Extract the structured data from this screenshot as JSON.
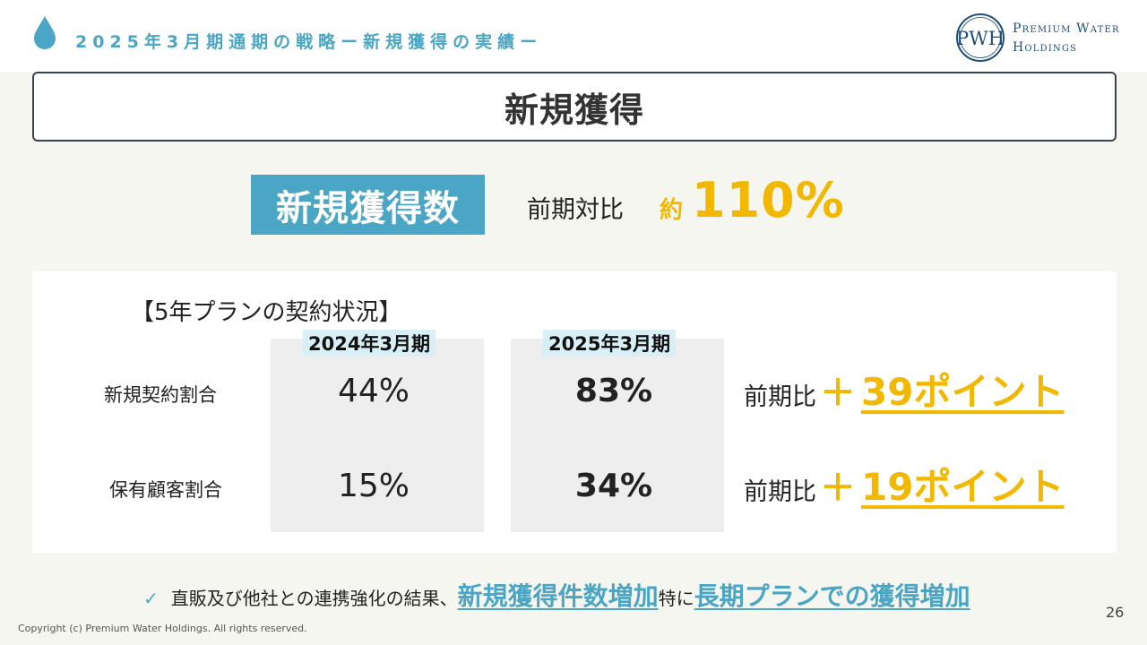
{
  "header": {
    "title": "2025年3月期通期の戦略ー新規獲得の実績ー",
    "logo_monogram": "PWH",
    "logo_line1": "Premium Water",
    "logo_line2": "Holdings"
  },
  "section": {
    "title": "新規獲得"
  },
  "summary": {
    "badge": "新規獲得数",
    "yoy_label": "前期対比",
    "approx": "約",
    "value": "110%"
  },
  "plan": {
    "title": "【5年プランの契約状況】",
    "columns": [
      "2024年3月期",
      "2025年3月期"
    ],
    "rows": [
      {
        "label": "新規契約割合",
        "values": [
          "44%",
          "83%"
        ],
        "compare_label": "前期比",
        "compare_plus": "＋",
        "compare_value": "39ポイント"
      },
      {
        "label": "保有顧客割合",
        "values": [
          "15%",
          "34%"
        ],
        "compare_label": "前期比",
        "compare_plus": "＋",
        "compare_value": "19ポイント"
      }
    ]
  },
  "footer": {
    "check": "✓",
    "text1": "直販及び他社との連携強化の結果、",
    "highlight1": "新規獲得件数増加",
    "text2": "特に",
    "highlight2": "長期プランでの獲得増加",
    "page_number": "26",
    "copyright": "Copyright (c) Premium Water Holdings. All rights reserved."
  },
  "colors": {
    "accent": "#4aa6c4",
    "highlight": "#f2b800",
    "navy": "#1f4e79"
  }
}
